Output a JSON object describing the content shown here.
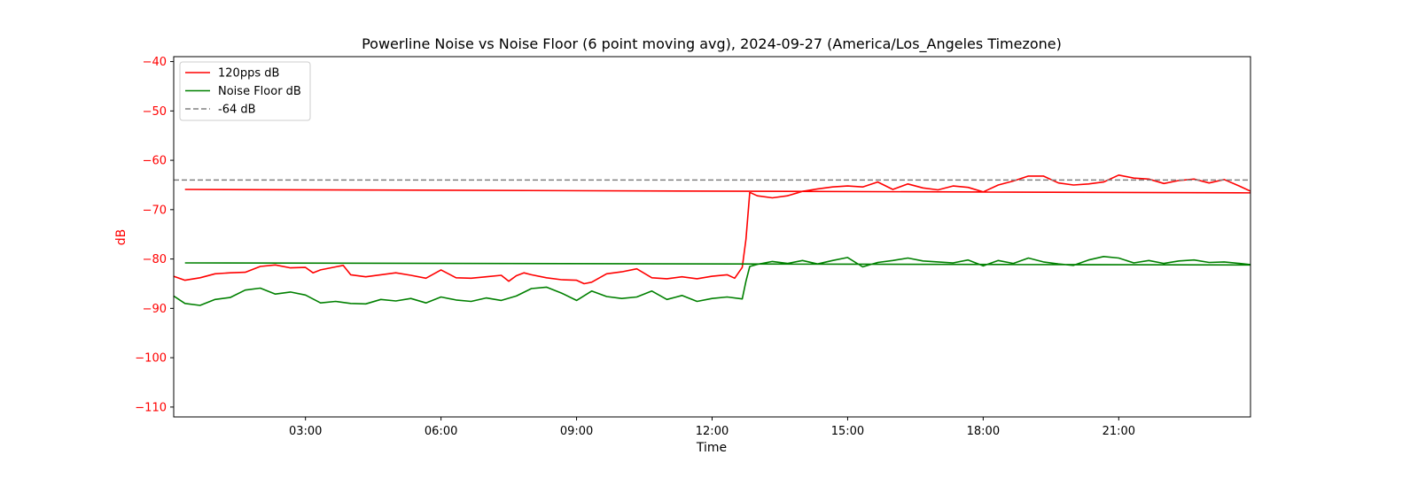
{
  "chart_data": {
    "type": "line",
    "title": "Powerline Noise vs Noise Floor (6 point moving avg), 2024-09-27 (America/Los_Angeles Timezone)",
    "xlabel": "Time",
    "ylabel": "dB",
    "xlim": [
      "00:05",
      "23:55"
    ],
    "ylim": [
      -112,
      -39
    ],
    "x_ticks": [
      "03:00",
      "06:00",
      "09:00",
      "12:00",
      "15:00",
      "18:00",
      "21:00"
    ],
    "y_ticks": [
      -40,
      -50,
      -60,
      -70,
      -80,
      -90,
      -100,
      -110
    ],
    "legend_position": "top-left",
    "grid": false,
    "series": [
      {
        "name": "120pps dB",
        "color": "#ff0000",
        "points": [
          [
            "00:05",
            -83.5
          ],
          [
            "00:20",
            -84.3
          ],
          [
            "00:40",
            -83.8
          ],
          [
            "01:00",
            -83.0
          ],
          [
            "01:20",
            -82.8
          ],
          [
            "01:40",
            -82.7
          ],
          [
            "02:00",
            -81.5
          ],
          [
            "02:20",
            -81.2
          ],
          [
            "02:40",
            -81.8
          ],
          [
            "03:00",
            -81.7
          ],
          [
            "03:10",
            -82.8
          ],
          [
            "03:20",
            -82.2
          ],
          [
            "03:40",
            -81.6
          ],
          [
            "03:50",
            -81.3
          ],
          [
            "04:00",
            -83.2
          ],
          [
            "04:20",
            -83.6
          ],
          [
            "04:40",
            -83.2
          ],
          [
            "05:00",
            -82.8
          ],
          [
            "05:20",
            -83.3
          ],
          [
            "05:40",
            -83.9
          ],
          [
            "06:00",
            -82.2
          ],
          [
            "06:20",
            -83.8
          ],
          [
            "06:40",
            -83.9
          ],
          [
            "07:00",
            -83.6
          ],
          [
            "07:20",
            -83.3
          ],
          [
            "07:30",
            -84.5
          ],
          [
            "07:40",
            -83.4
          ],
          [
            "07:50",
            -82.8
          ],
          [
            "08:00",
            -83.2
          ],
          [
            "08:20",
            -83.8
          ],
          [
            "08:40",
            -84.2
          ],
          [
            "09:00",
            -84.3
          ],
          [
            "09:10",
            -85.0
          ],
          [
            "09:20",
            -84.7
          ],
          [
            "09:40",
            -83.0
          ],
          [
            "10:00",
            -82.6
          ],
          [
            "10:20",
            -82.0
          ],
          [
            "10:40",
            -83.8
          ],
          [
            "11:00",
            -84.0
          ],
          [
            "11:20",
            -83.6
          ],
          [
            "11:40",
            -84.0
          ],
          [
            "12:00",
            -83.5
          ],
          [
            "12:20",
            -83.2
          ],
          [
            "12:30",
            -83.9
          ],
          [
            "12:40",
            -81.7
          ],
          [
            "12:45",
            -76.0
          ],
          [
            "12:50",
            -66.5
          ],
          [
            "13:00",
            -67.2
          ],
          [
            "13:20",
            -67.6
          ],
          [
            "13:40",
            -67.2
          ],
          [
            "14:00",
            -66.3
          ],
          [
            "14:20",
            -65.8
          ],
          [
            "14:40",
            -65.4
          ],
          [
            "15:00",
            -65.2
          ],
          [
            "15:20",
            -65.4
          ],
          [
            "15:40",
            -64.4
          ],
          [
            "16:00",
            -65.9
          ],
          [
            "16:20",
            -64.8
          ],
          [
            "16:40",
            -65.6
          ],
          [
            "17:00",
            -66.0
          ],
          [
            "17:20",
            -65.2
          ],
          [
            "17:40",
            -65.5
          ],
          [
            "18:00",
            -66.4
          ],
          [
            "18:20",
            -65.0
          ],
          [
            "18:40",
            -64.2
          ],
          [
            "19:00",
            -63.2
          ],
          [
            "19:20",
            -63.2
          ],
          [
            "19:40",
            -64.6
          ],
          [
            "20:00",
            -65.0
          ],
          [
            "20:20",
            -64.8
          ],
          [
            "20:40",
            -64.4
          ],
          [
            "21:00",
            -63.0
          ],
          [
            "21:20",
            -63.6
          ],
          [
            "21:40",
            -63.8
          ],
          [
            "22:00",
            -64.7
          ],
          [
            "22:20",
            -64.1
          ],
          [
            "22:40",
            -63.8
          ],
          [
            "23:00",
            -64.6
          ],
          [
            "23:20",
            -63.9
          ],
          [
            "23:40",
            -65.2
          ],
          [
            "00:00",
            -66.6
          ],
          [
            "00:20",
            -65.9
          ]
        ]
      },
      {
        "name": "Noise Floor dB",
        "color": "#008000",
        "points": [
          [
            "00:05",
            -87.5
          ],
          [
            "00:20",
            -89.0
          ],
          [
            "00:40",
            -89.4
          ],
          [
            "01:00",
            -88.2
          ],
          [
            "01:20",
            -87.8
          ],
          [
            "01:40",
            -86.3
          ],
          [
            "02:00",
            -85.9
          ],
          [
            "02:20",
            -87.1
          ],
          [
            "02:40",
            -86.7
          ],
          [
            "03:00",
            -87.3
          ],
          [
            "03:20",
            -88.9
          ],
          [
            "03:40",
            -88.6
          ],
          [
            "04:00",
            -89.0
          ],
          [
            "04:20",
            -89.1
          ],
          [
            "04:40",
            -88.2
          ],
          [
            "05:00",
            -88.5
          ],
          [
            "05:20",
            -88.0
          ],
          [
            "05:40",
            -88.9
          ],
          [
            "06:00",
            -87.7
          ],
          [
            "06:20",
            -88.3
          ],
          [
            "06:40",
            -88.6
          ],
          [
            "07:00",
            -87.9
          ],
          [
            "07:20",
            -88.4
          ],
          [
            "07:40",
            -87.5
          ],
          [
            "08:00",
            -86.0
          ],
          [
            "08:20",
            -85.7
          ],
          [
            "08:40",
            -86.9
          ],
          [
            "09:00",
            -88.4
          ],
          [
            "09:20",
            -86.5
          ],
          [
            "09:40",
            -87.6
          ],
          [
            "10:00",
            -88.0
          ],
          [
            "10:20",
            -87.7
          ],
          [
            "10:40",
            -86.5
          ],
          [
            "11:00",
            -88.2
          ],
          [
            "11:20",
            -87.4
          ],
          [
            "11:40",
            -88.6
          ],
          [
            "12:00",
            -88.0
          ],
          [
            "12:20",
            -87.7
          ],
          [
            "12:40",
            -88.1
          ],
          [
            "12:45",
            -84.5
          ],
          [
            "12:50",
            -81.5
          ],
          [
            "13:00",
            -81.1
          ],
          [
            "13:20",
            -80.5
          ],
          [
            "13:40",
            -80.9
          ],
          [
            "14:00",
            -80.3
          ],
          [
            "14:20",
            -81.0
          ],
          [
            "14:40",
            -80.3
          ],
          [
            "15:00",
            -79.7
          ],
          [
            "15:20",
            -81.6
          ],
          [
            "15:40",
            -80.7
          ],
          [
            "16:00",
            -80.3
          ],
          [
            "16:20",
            -79.8
          ],
          [
            "16:40",
            -80.4
          ],
          [
            "17:00",
            -80.6
          ],
          [
            "17:20",
            -80.8
          ],
          [
            "17:40",
            -80.2
          ],
          [
            "18:00",
            -81.4
          ],
          [
            "18:20",
            -80.3
          ],
          [
            "18:40",
            -80.9
          ],
          [
            "19:00",
            -79.8
          ],
          [
            "19:20",
            -80.6
          ],
          [
            "19:40",
            -81.0
          ],
          [
            "20:00",
            -81.3
          ],
          [
            "20:20",
            -80.2
          ],
          [
            "20:40",
            -79.5
          ],
          [
            "21:00",
            -79.8
          ],
          [
            "21:20",
            -80.8
          ],
          [
            "21:40",
            -80.3
          ],
          [
            "22:00",
            -80.9
          ],
          [
            "22:20",
            -80.4
          ],
          [
            "22:40",
            -80.2
          ],
          [
            "23:00",
            -80.7
          ],
          [
            "23:20",
            -80.6
          ],
          [
            "23:40",
            -80.9
          ],
          [
            "00:00",
            -81.2
          ],
          [
            "00:20",
            -80.8
          ]
        ]
      },
      {
        "name": "-64 dB",
        "color": "#808080",
        "style": "dashed",
        "constant": -64
      }
    ]
  }
}
